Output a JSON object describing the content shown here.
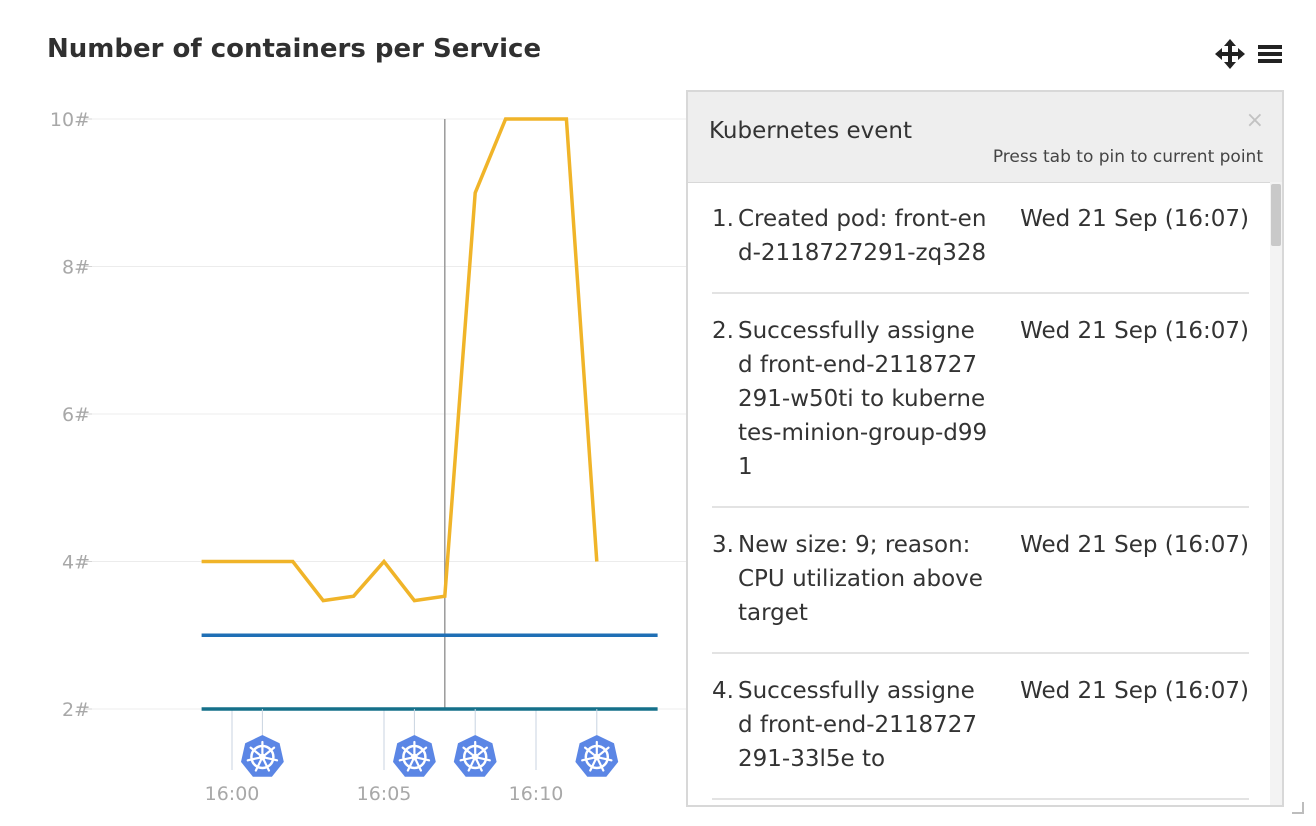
{
  "chart_title": "Number of containers per Service",
  "toolbar": {
    "move_icon": "move-arrows-icon",
    "menu_icon": "hamburger-menu-icon"
  },
  "chart_data": {
    "type": "line",
    "title": "Number of containers per Service",
    "xlabel": "",
    "ylabel": "",
    "x_tick_labels": [
      "16:00",
      "16:05",
      "16:10"
    ],
    "y_tick_labels": [
      "2#",
      "4#",
      "6#",
      "8#",
      "10#"
    ],
    "ylim": [
      2,
      10
    ],
    "grid": true,
    "series": [
      {
        "color": "#f0b429",
        "x": [
          "15:59",
          "16:00",
          "16:01",
          "16:02",
          "16:03",
          "16:04",
          "16:05",
          "16:06",
          "16:07",
          "16:08",
          "16:09",
          "16:10",
          "16:11",
          "16:12"
        ],
        "values": [
          4,
          4,
          4,
          4,
          3.47,
          3.53,
          4,
          3.47,
          3.53,
          9,
          10,
          10,
          10,
          4
        ]
      },
      {
        "color": "#1f6fb5",
        "x": [
          "15:59",
          "16:14"
        ],
        "values": [
          3,
          3
        ]
      },
      {
        "color": "#15708a",
        "x": [
          "15:59",
          "16:14"
        ],
        "values": [
          2,
          2
        ]
      }
    ],
    "hover_time": "16:07",
    "event_markers": [
      {
        "time": "16:01",
        "icon": "kubernetes-icon"
      },
      {
        "time": "16:06",
        "icon": "kubernetes-icon"
      },
      {
        "time": "16:08",
        "icon": "kubernetes-icon"
      },
      {
        "time": "16:12",
        "icon": "kubernetes-icon"
      }
    ],
    "marker_color": "#5b86e5"
  },
  "popup": {
    "title": "Kubernetes event",
    "close_label": "×",
    "hint": "Press tab to pin to current point",
    "events": [
      {
        "num": "1.",
        "text": "Created pod: front-end-2118727291-zq328",
        "time": "Wed 21 Sep (16:07)"
      },
      {
        "num": "2.",
        "text": "Successfully assigned front-end-2118727291-w50ti to kubernetes-minion-group-d991",
        "time": "Wed 21 Sep (16:07)"
      },
      {
        "num": "3.",
        "text": "New size: 9; reason: CPU utilization above target",
        "time": "Wed 21 Sep (16:07)"
      },
      {
        "num": "4.",
        "text": "Successfully assigned front-end-2118727291-33l5e to",
        "time": "Wed 21 Sep (16:07)"
      }
    ]
  }
}
